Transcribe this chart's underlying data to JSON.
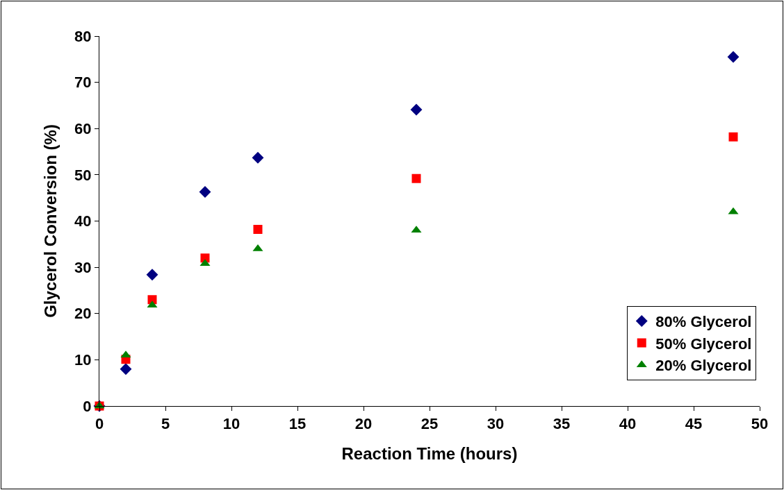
{
  "chart_data": {
    "type": "scatter",
    "xlabel": "Reaction Time (hours)",
    "ylabel": "Glycerol Conversion (%)",
    "x": [
      0,
      2,
      4,
      8,
      12,
      24,
      48
    ],
    "series": [
      {
        "name": "80% Glycerol",
        "color": "#000080",
        "marker": "diamond",
        "values": [
          0,
          8.0,
          28.4,
          46.3,
          53.7,
          64.1,
          75.5
        ]
      },
      {
        "name": "50% Glycerol",
        "color": "#ff0000",
        "marker": "square",
        "values": [
          0,
          10.1,
          23.0,
          32.0,
          38.2,
          49.2,
          58.2
        ]
      },
      {
        "name": "20% Glycerol",
        "color": "#008000",
        "marker": "triangle",
        "values": [
          0,
          11.0,
          21.8,
          30.8,
          34.0,
          38.0,
          42.0
        ]
      }
    ],
    "xlim": [
      0,
      50
    ],
    "xticks": [
      0,
      5,
      10,
      15,
      20,
      25,
      30,
      35,
      40,
      45,
      50
    ],
    "ylim": [
      0,
      80
    ],
    "yticks": [
      0,
      10,
      20,
      30,
      40,
      50,
      60,
      70,
      80
    ],
    "grid": false,
    "legend": "bottom right"
  }
}
